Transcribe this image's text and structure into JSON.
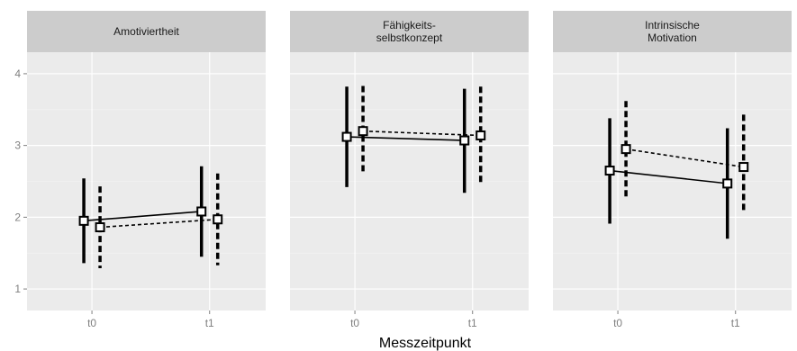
{
  "chart_data": {
    "type": "line",
    "xlabel": "Messzeitpunkt",
    "ylabel": "",
    "ylim": [
      0.7,
      4.3
    ],
    "yticks": [
      1,
      2,
      3,
      4
    ],
    "categories": [
      "t0",
      "t1"
    ],
    "grid": "on",
    "legend": "none",
    "panels": [
      {
        "title": "Amotiviertheit",
        "series": [
          {
            "style": "solid",
            "values": [
              1.95,
              2.08
            ],
            "lower": [
              1.36,
              1.45
            ],
            "upper": [
              2.54,
              2.71
            ]
          },
          {
            "style": "dashed",
            "values": [
              1.86,
              1.97
            ],
            "lower": [
              1.29,
              1.33
            ],
            "upper": [
              2.43,
              2.61
            ]
          }
        ]
      },
      {
        "title": "Fähigkeits-\nselbstkonzept",
        "series": [
          {
            "style": "solid",
            "values": [
              3.12,
              3.07
            ],
            "lower": [
              2.42,
              2.34
            ],
            "upper": [
              3.82,
              3.79
            ]
          },
          {
            "style": "dashed",
            "values": [
              3.2,
              3.14
            ],
            "lower": [
              2.64,
              2.46
            ],
            "upper": [
              3.83,
              3.82
            ]
          }
        ]
      },
      {
        "title": "Intrinsische\nMotivation",
        "series": [
          {
            "style": "solid",
            "values": [
              2.65,
              2.47
            ],
            "lower": [
              1.91,
              1.7
            ],
            "upper": [
              3.38,
              3.24
            ]
          },
          {
            "style": "dashed",
            "values": [
              2.95,
              2.7
            ],
            "lower": [
              2.28,
              2.06
            ],
            "upper": [
              3.62,
              3.43
            ]
          }
        ]
      }
    ]
  }
}
